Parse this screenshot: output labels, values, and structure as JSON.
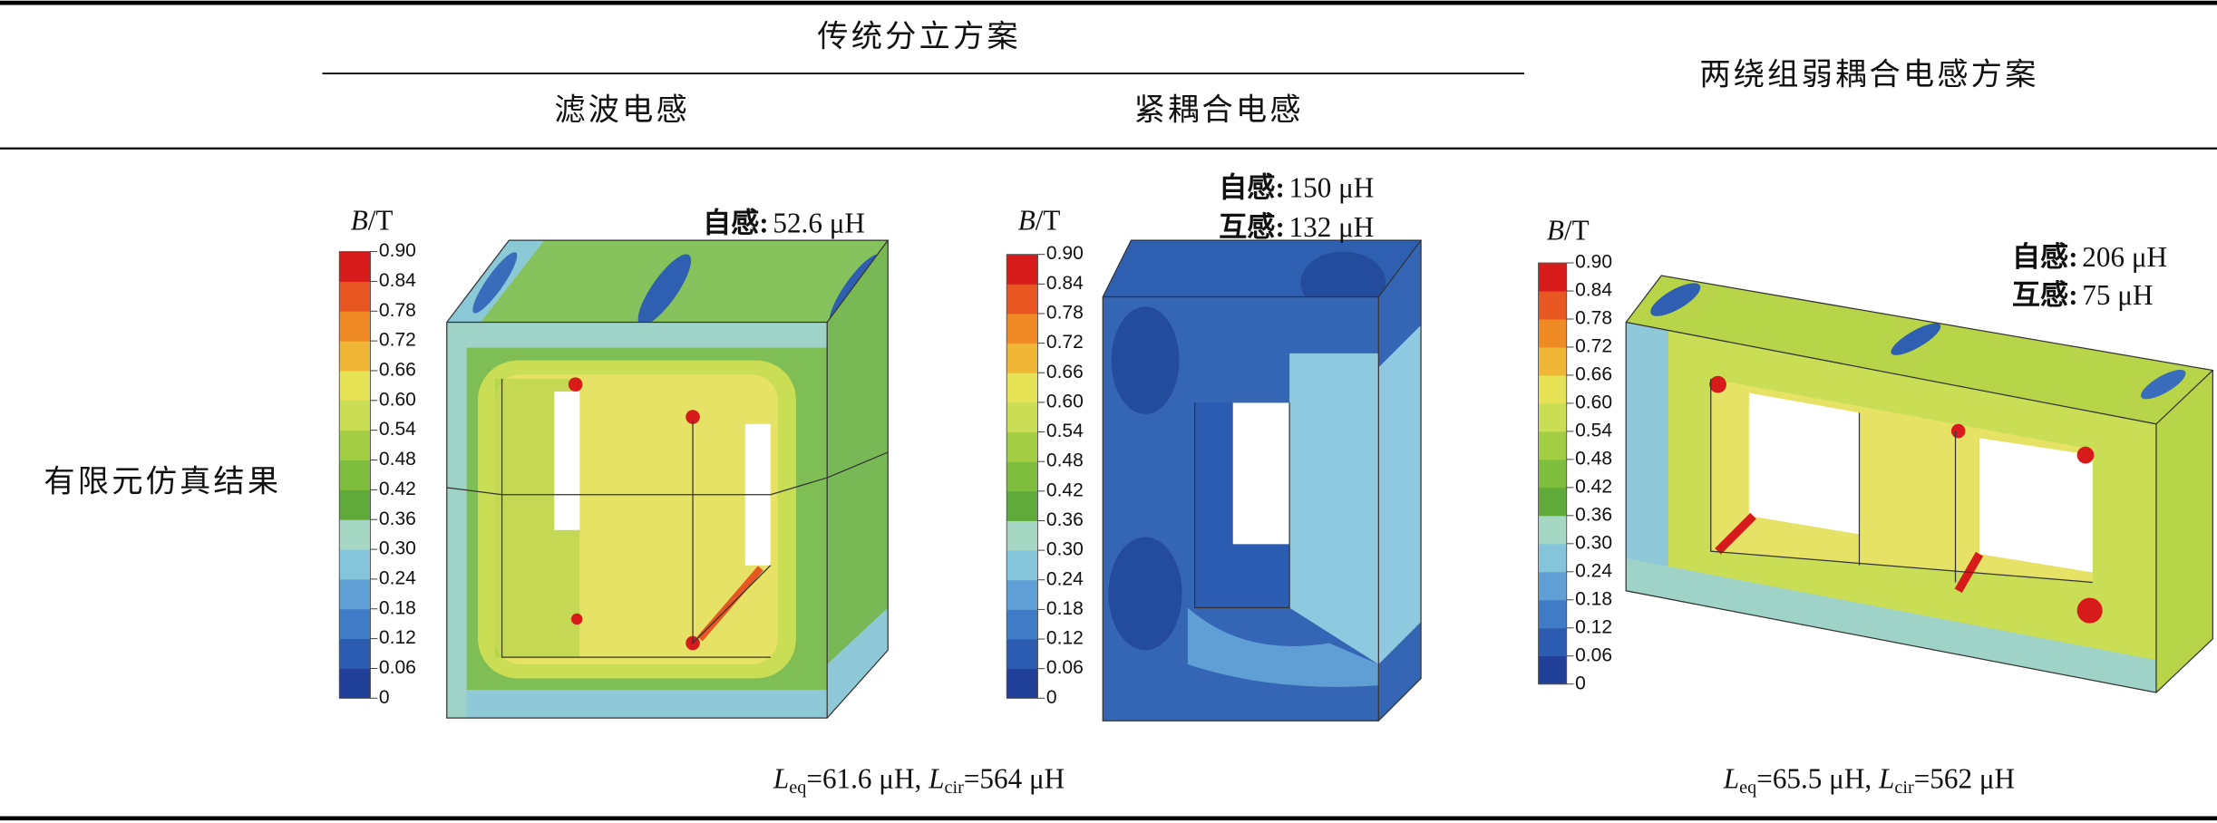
{
  "table": {
    "header": {
      "group": "传统分立方案",
      "columns": [
        "滤波电感",
        "紧耦合电感"
      ],
      "right": "两绕组弱耦合电感方案"
    },
    "row_label": "有限元仿真结果",
    "colorbar": {
      "symbol": "B",
      "unit": "/T",
      "lim": [
        0,
        0.9
      ],
      "ticks": [
        0,
        0.06,
        0.12,
        0.18,
        0.24,
        {
          "value": 0.3,
          "label": "0.30"
        },
        0.36,
        0.42,
        0.48,
        0.54,
        {
          "value": 0.6,
          "label": "0.60"
        },
        0.66,
        0.72,
        0.78,
        0.84,
        {
          "value": 0.9,
          "label": "0.90"
        }
      ],
      "colors": [
        "#1f3f98",
        "#2c5cb2",
        "#3f7bc6",
        "#5f9fd6",
        "#85c5dc",
        "#a6d6c4",
        "#5faa38",
        "#7fbd3c",
        "#a3cd42",
        "#c9dd55",
        "#e6e255",
        "#f0b636",
        "#f08a24",
        "#e85722",
        "#d71a1a"
      ]
    },
    "panels": [
      {
        "annotations": [
          {
            "label": "自感:",
            "value": "52.6 μH"
          }
        ]
      },
      {
        "annotations": [
          {
            "label": "自感:",
            "value": "150 μH"
          },
          {
            "label": "互感:",
            "value": "132 μH"
          }
        ]
      },
      {
        "annotations": [
          {
            "label": "自感:",
            "value": "206 μH"
          },
          {
            "label": "互感:",
            "value": "75 μH"
          }
        ]
      }
    ],
    "results": [
      {
        "terms": [
          {
            "symbol": "L",
            "subscript": "eq",
            "value": "=61.6 μH"
          },
          {
            "symbol": "L",
            "subscript": "cir",
            "value": "=564 μH"
          }
        ],
        "separator": ", "
      },
      {
        "terms": [
          {
            "symbol": "L",
            "subscript": "eq",
            "value": "=65.5 μH"
          },
          {
            "symbol": "L",
            "subscript": "cir",
            "value": "=562 μH"
          }
        ],
        "separator": ", "
      }
    ]
  }
}
